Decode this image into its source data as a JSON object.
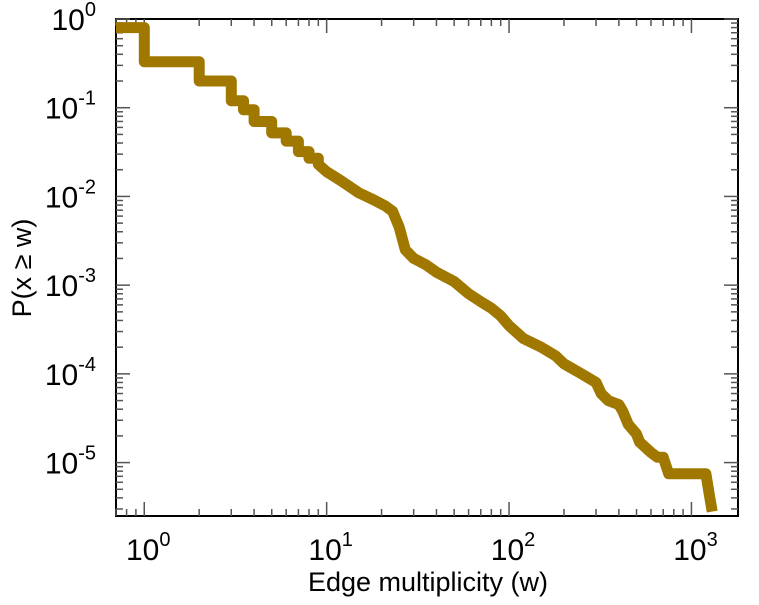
{
  "chart_data": {
    "type": "line",
    "step": true,
    "log_x": true,
    "log_y": true,
    "xlabel": "Edge multiplicity (w)",
    "ylabel": "P(x ≥ w)",
    "xlim": [
      0.7,
      1800
    ],
    "ylim": [
      2.5e-06,
      1.0
    ],
    "grid": false,
    "x_ticks": [
      {
        "value": 1,
        "base": "10",
        "exp": "0"
      },
      {
        "value": 10,
        "base": "10",
        "exp": "1"
      },
      {
        "value": 100,
        "base": "10",
        "exp": "2"
      },
      {
        "value": 1000,
        "base": "10",
        "exp": "3"
      }
    ],
    "y_ticks": [
      {
        "value": 1,
        "base": "10",
        "exp": "0"
      },
      {
        "value": 0.1,
        "base": "10",
        "exp": "-1"
      },
      {
        "value": 0.01,
        "base": "10",
        "exp": "-2"
      },
      {
        "value": 0.001,
        "base": "10",
        "exp": "-3"
      },
      {
        "value": 0.0001,
        "base": "10",
        "exp": "-4"
      },
      {
        "value": 1e-05,
        "base": "10",
        "exp": "-5"
      }
    ],
    "series": [
      {
        "color": "#a07800",
        "x": [
          0.7,
          1,
          1,
          2,
          2,
          3,
          3,
          3.5,
          3.5,
          4,
          4,
          5,
          5,
          6,
          6,
          7,
          7,
          8,
          8,
          9,
          9,
          10,
          12,
          15,
          18,
          21,
          23,
          25,
          27,
          30,
          35,
          40,
          50,
          60,
          70,
          80,
          90,
          100,
          120,
          150,
          180,
          200,
          250,
          300,
          320,
          350,
          400,
          420,
          450,
          500,
          520,
          600,
          650,
          700,
          750,
          1000,
          1200,
          1250,
          1300
        ],
        "values": [
          0.8,
          0.8,
          0.33,
          0.33,
          0.2,
          0.2,
          0.12,
          0.12,
          0.095,
          0.095,
          0.07,
          0.07,
          0.052,
          0.052,
          0.042,
          0.042,
          0.032,
          0.032,
          0.027,
          0.027,
          0.023,
          0.019,
          0.015,
          0.011,
          0.0092,
          0.0078,
          0.0068,
          0.0045,
          0.0025,
          0.002,
          0.0017,
          0.0014,
          0.0011,
          0.0008,
          0.00065,
          0.00055,
          0.00045,
          0.00035,
          0.00025,
          0.0002,
          0.00016,
          0.00013,
          0.0001,
          8e-05,
          6e-05,
          5e-05,
          4.5e-05,
          3.8e-05,
          2.7e-05,
          2.1e-05,
          1.7e-05,
          1.3e-05,
          1.15e-05,
          1.15e-05,
          7.5e-06,
          7.5e-06,
          7.5e-06,
          4.5e-06,
          2.8e-06
        ]
      }
    ]
  }
}
